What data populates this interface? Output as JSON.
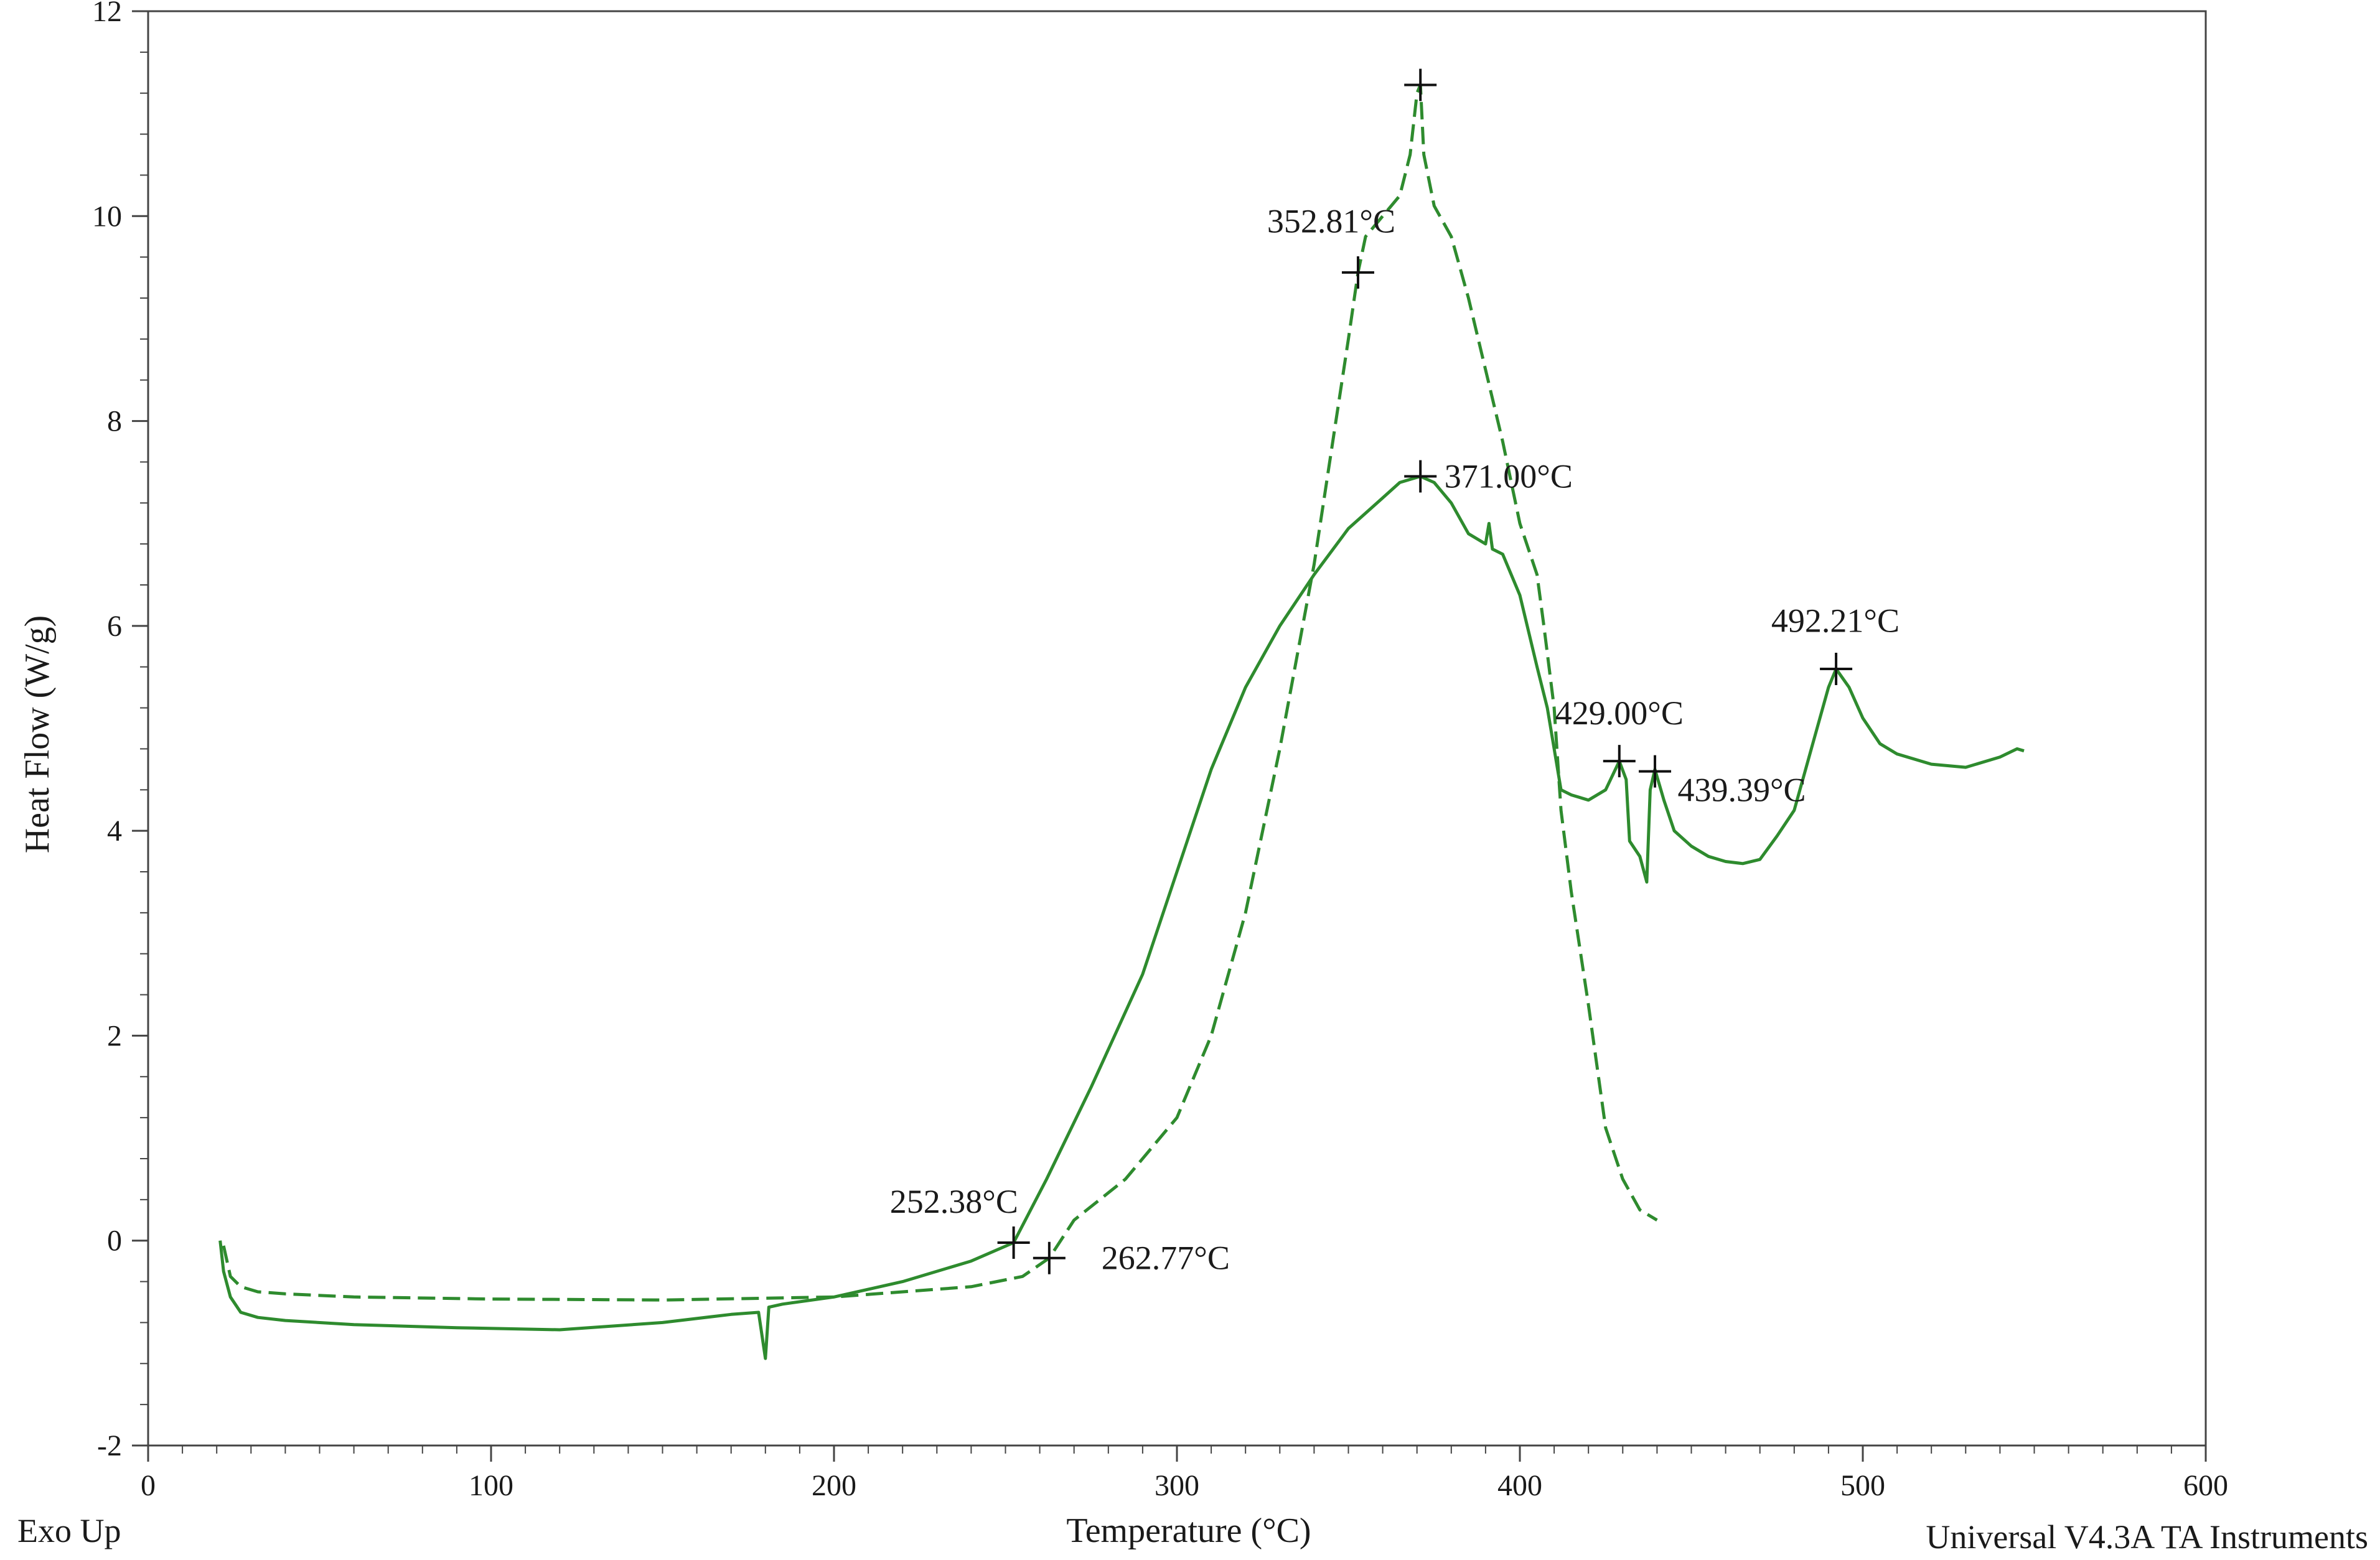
{
  "chart_data": {
    "type": "line",
    "title": "",
    "xlabel": "Temperature (°C)",
    "ylabel": "Heat Flow (W/g)",
    "xlim": [
      0,
      600
    ],
    "ylim": [
      -2,
      12
    ],
    "x_ticks": [
      0,
      100,
      200,
      300,
      400,
      500,
      600
    ],
    "y_ticks": [
      -2,
      0,
      2,
      4,
      6,
      8,
      10,
      12
    ],
    "grid": false,
    "legend": "none",
    "line_color": "#2e8b2e",
    "corner_labels": {
      "bottom_left": "Exo Up",
      "bottom_right": "Universal V4.3A TA Instruments"
    },
    "series": [
      {
        "style": "solid",
        "x": [
          21,
          22,
          24,
          27,
          32,
          40,
          60,
          90,
          120,
          150,
          170,
          178,
          180,
          181,
          185,
          200,
          220,
          240,
          252.38,
          262,
          275,
          290,
          300,
          310,
          320,
          330,
          340,
          350,
          360,
          365,
          371,
          375,
          380,
          385,
          390,
          391,
          392,
          395,
          400,
          405,
          408,
          410,
          412,
          415,
          420,
          425,
          429,
          431,
          432,
          435,
          437,
          438,
          439.39,
          442,
          445,
          450,
          455,
          460,
          465,
          470,
          475,
          480,
          485,
          490,
          492.21,
          496,
          500,
          505,
          510,
          520,
          530,
          540,
          545,
          547
        ],
        "y": [
          0.0,
          -0.3,
          -0.55,
          -0.7,
          -0.75,
          -0.78,
          -0.82,
          -0.85,
          -0.87,
          -0.8,
          -0.72,
          -0.7,
          -1.15,
          -0.65,
          -0.62,
          -0.55,
          -0.4,
          -0.2,
          -0.02,
          0.6,
          1.5,
          2.6,
          3.6,
          4.6,
          5.4,
          6.0,
          6.5,
          6.95,
          7.25,
          7.4,
          7.46,
          7.4,
          7.2,
          6.9,
          6.8,
          7.0,
          6.75,
          6.7,
          6.3,
          5.6,
          5.2,
          4.8,
          4.4,
          4.35,
          4.3,
          4.4,
          4.68,
          4.5,
          3.9,
          3.75,
          3.5,
          4.4,
          4.6,
          4.3,
          4.0,
          3.85,
          3.75,
          3.7,
          3.68,
          3.72,
          3.95,
          4.2,
          4.8,
          5.4,
          5.58,
          5.4,
          5.1,
          4.85,
          4.75,
          4.65,
          4.62,
          4.72,
          4.8,
          4.78
        ]
      },
      {
        "style": "dashed",
        "x": [
          22,
          24,
          27,
          32,
          40,
          60,
          100,
          150,
          200,
          240,
          255,
          262.77,
          270,
          285,
          300,
          310,
          320,
          330,
          340,
          345,
          350,
          352.81,
          355,
          360,
          365,
          368,
          370,
          371,
          372,
          375,
          380,
          385,
          390,
          395,
          400,
          405,
          407,
          410,
          412,
          415,
          420,
          425,
          430,
          435,
          440
        ],
        "y": [
          -0.05,
          -0.35,
          -0.45,
          -0.5,
          -0.52,
          -0.55,
          -0.57,
          -0.58,
          -0.55,
          -0.45,
          -0.35,
          -0.17,
          0.2,
          0.6,
          1.2,
          2.0,
          3.2,
          4.8,
          6.6,
          7.7,
          8.8,
          9.45,
          9.8,
          10.0,
          10.2,
          10.6,
          11.2,
          11.28,
          10.6,
          10.1,
          9.8,
          9.2,
          8.5,
          7.8,
          7.0,
          6.5,
          6.0,
          5.2,
          4.2,
          3.4,
          2.3,
          1.1,
          0.6,
          0.3,
          0.2
        ]
      }
    ],
    "annotations": [
      {
        "x": 252.38,
        "y": -0.02,
        "label": "252.38°C",
        "label_x": 235,
        "label_y": 0.38,
        "anchor": "middle"
      },
      {
        "x": 262.77,
        "y": -0.17,
        "label": "262.77°C",
        "label_x": 278,
        "label_y": -0.17,
        "anchor": "start"
      },
      {
        "x": 352.81,
        "y": 9.45,
        "label": "352.81°C",
        "label_x": 345,
        "label_y": 9.95,
        "anchor": "middle"
      },
      {
        "x": 371.0,
        "y": 11.28,
        "label": "",
        "label_x": 371,
        "label_y": 11.28,
        "anchor": "middle"
      },
      {
        "x": 371.0,
        "y": 7.46,
        "label": "371.00°C",
        "label_x": 378,
        "label_y": 7.46,
        "anchor": "start"
      },
      {
        "x": 429.0,
        "y": 4.68,
        "label": "429.00°C",
        "label_x": 429,
        "label_y": 5.15,
        "anchor": "middle"
      },
      {
        "x": 439.39,
        "y": 4.58,
        "label": "439.39°C",
        "label_x": 446,
        "label_y": 4.4,
        "anchor": "start"
      },
      {
        "x": 492.21,
        "y": 5.58,
        "label": "492.21°C",
        "label_x": 492,
        "label_y": 6.05,
        "anchor": "middle"
      }
    ]
  }
}
